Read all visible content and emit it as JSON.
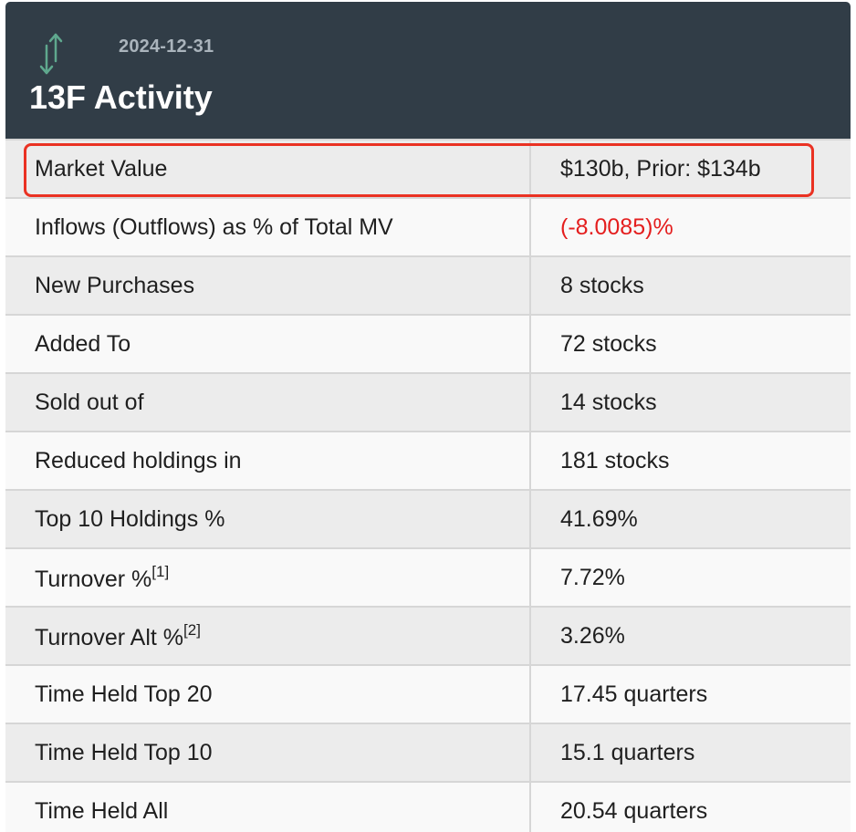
{
  "header": {
    "date": "2024-12-31",
    "title": "13F Activity",
    "icon": "up-down-arrows-icon",
    "icon_color": "#5fa88e",
    "background_color": "#313d47"
  },
  "rows": [
    {
      "label": "Market Value",
      "sup": "",
      "value": "$130b, Prior: $134b"
    },
    {
      "label": "Inflows (Outflows) as % of Total MV",
      "sup": "",
      "value": "(-8.0085)%"
    },
    {
      "label": "New Purchases",
      "sup": "",
      "value": "8 stocks"
    },
    {
      "label": "Added To",
      "sup": "",
      "value": "72 stocks"
    },
    {
      "label": "Sold out of",
      "sup": "",
      "value": "14 stocks"
    },
    {
      "label": "Reduced holdings in",
      "sup": "",
      "value": "181 stocks"
    },
    {
      "label": "Top 10 Holdings %",
      "sup": "",
      "value": "41.69%"
    },
    {
      "label": "Turnover %",
      "sup": "[1]",
      "value": "7.72%"
    },
    {
      "label": "Turnover Alt %",
      "sup": "[2]",
      "value": "3.26%"
    },
    {
      "label": "Time Held Top 20",
      "sup": "",
      "value": "17.45 quarters"
    },
    {
      "label": "Time Held Top 10",
      "sup": "",
      "value": "15.1 quarters"
    },
    {
      "label": "Time Held All",
      "sup": "",
      "value": "20.54 quarters"
    }
  ],
  "colors": {
    "negative_value": "#e41e1e",
    "highlight_border": "#ea3223"
  }
}
